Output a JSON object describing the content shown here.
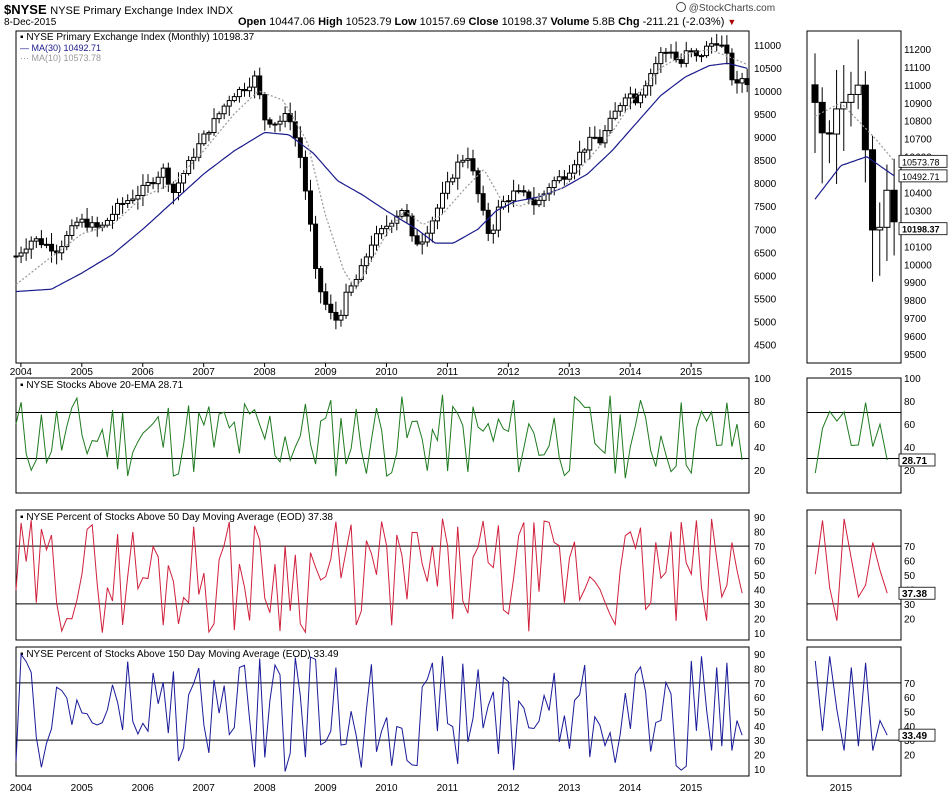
{
  "header": {
    "symbol": "$NYSE",
    "name": "NYSE Primary Exchange Index",
    "exchange": "INDX",
    "date": "8-Dec-2015",
    "watermark": "@StockCharts.com",
    "ohlc": [
      {
        "label": "Open",
        "value": "10447.06"
      },
      {
        "label": "High",
        "value": "10523.79"
      },
      {
        "label": "Low",
        "value": "10157.69"
      },
      {
        "label": "Close",
        "value": "10198.37"
      },
      {
        "label": "Volume",
        "value": "5.8B"
      },
      {
        "label": "Chg",
        "value": "-211.21 (-2.03%)"
      }
    ],
    "chg_arrow": "▼"
  },
  "colors": {
    "price": "#000000",
    "ma30": "#1a1a8c",
    "ma10": "#999999",
    "ema20": "#1f7a1f",
    "ma50": "#d0203c",
    "ma150": "#1a1a9a",
    "grid": "#000000"
  },
  "chart_data": [
    {
      "type": "candlestick",
      "title": "NYSE Primary Exchange Index (Monthly) 10198.37",
      "legend": [
        {
          "label": "MA(30) 10492.71",
          "series": "ma30"
        },
        {
          "label": "MA(10) 10573.78",
          "series": "ma10"
        }
      ],
      "x_years": [
        "2004",
        "2005",
        "2006",
        "2007",
        "2008",
        "2009",
        "2010",
        "2011",
        "2012",
        "2013",
        "2014",
        "2015"
      ],
      "y_ticks": [
        4500,
        5000,
        5500,
        6000,
        6500,
        7000,
        7500,
        8000,
        8500,
        9000,
        9500,
        10000,
        10500,
        11000
      ],
      "ylim": [
        4100,
        11300
      ],
      "close_anchors": [
        [
          2003.92,
          6420
        ],
        [
          2004.2,
          6800
        ],
        [
          2004.6,
          6550
        ],
        [
          2004.95,
          7200
        ],
        [
          2005.3,
          7000
        ],
        [
          2005.6,
          7500
        ],
        [
          2005.95,
          7800
        ],
        [
          2006.35,
          8300
        ],
        [
          2006.5,
          7800
        ],
        [
          2006.95,
          8900
        ],
        [
          2007.15,
          9300
        ],
        [
          2007.45,
          9900
        ],
        [
          2007.7,
          10100
        ],
        [
          2007.85,
          10300
        ],
        [
          2008.0,
          9400
        ],
        [
          2008.2,
          9300
        ],
        [
          2008.4,
          9500
        ],
        [
          2008.6,
          8500
        ],
        [
          2008.75,
          7100
        ],
        [
          2008.85,
          5900
        ],
        [
          2009.05,
          5200
        ],
        [
          2009.2,
          5000
        ],
        [
          2009.35,
          5600
        ],
        [
          2009.55,
          6000
        ],
        [
          2009.75,
          6700
        ],
        [
          2009.95,
          7000
        ],
        [
          2010.15,
          7300
        ],
        [
          2010.3,
          7500
        ],
        [
          2010.4,
          6800
        ],
        [
          2010.55,
          6700
        ],
        [
          2010.75,
          7200
        ],
        [
          2010.95,
          7800
        ],
        [
          2011.2,
          8500
        ],
        [
          2011.35,
          8600
        ],
        [
          2011.55,
          7500
        ],
        [
          2011.7,
          6800
        ],
        [
          2011.85,
          7500
        ],
        [
          2012.1,
          7800
        ],
        [
          2012.35,
          7700
        ],
        [
          2012.45,
          7500
        ],
        [
          2012.7,
          8000
        ],
        [
          2012.95,
          8200
        ],
        [
          2013.2,
          8700
        ],
        [
          2013.4,
          9000
        ],
        [
          2013.5,
          8900
        ],
        [
          2013.7,
          9400
        ],
        [
          2013.95,
          10000
        ],
        [
          2014.1,
          9800
        ],
        [
          2014.3,
          10300
        ],
        [
          2014.5,
          10800
        ],
        [
          2014.7,
          10900
        ],
        [
          2014.8,
          10500
        ],
        [
          2014.95,
          10900
        ],
        [
          2015.1,
          10700
        ],
        [
          2015.3,
          11000
        ],
        [
          2015.45,
          11100
        ],
        [
          2015.6,
          10700
        ],
        [
          2015.72,
          10000
        ],
        [
          2015.82,
          10300
        ],
        [
          2015.92,
          10198
        ]
      ],
      "ma30_anchors": [
        [
          2003.92,
          5650
        ],
        [
          2004.5,
          5700
        ],
        [
          2005.0,
          6050
        ],
        [
          2005.5,
          6450
        ],
        [
          2006.0,
          7000
        ],
        [
          2006.5,
          7600
        ],
        [
          2007.0,
          8200
        ],
        [
          2007.5,
          8700
        ],
        [
          2008.0,
          9100
        ],
        [
          2008.4,
          9050
        ],
        [
          2008.8,
          8650
        ],
        [
          2009.2,
          8050
        ],
        [
          2009.6,
          7750
        ],
        [
          2010.0,
          7400
        ],
        [
          2010.5,
          7000
        ],
        [
          2010.8,
          6700
        ],
        [
          2011.1,
          6700
        ],
        [
          2011.5,
          7000
        ],
        [
          2011.8,
          7400
        ],
        [
          2012.1,
          7600
        ],
        [
          2012.5,
          7700
        ],
        [
          2012.9,
          7900
        ],
        [
          2013.3,
          8200
        ],
        [
          2013.7,
          8700
        ],
        [
          2014.1,
          9300
        ],
        [
          2014.5,
          9900
        ],
        [
          2014.9,
          10300
        ],
        [
          2015.3,
          10550
        ],
        [
          2015.6,
          10600
        ],
        [
          2015.92,
          10492
        ]
      ],
      "ma10_anchors": [
        [
          2003.92,
          5800
        ],
        [
          2004.4,
          6300
        ],
        [
          2005.0,
          6900
        ],
        [
          2005.5,
          7100
        ],
        [
          2006.0,
          7700
        ],
        [
          2006.5,
          8000
        ],
        [
          2007.0,
          8700
        ],
        [
          2007.5,
          9500
        ],
        [
          2007.9,
          10000
        ],
        [
          2008.3,
          9800
        ],
        [
          2008.7,
          8900
        ],
        [
          2009.0,
          7300
        ],
        [
          2009.3,
          6100
        ],
        [
          2009.5,
          5700
        ],
        [
          2009.7,
          6200
        ],
        [
          2010.0,
          6900
        ],
        [
          2010.3,
          7400
        ],
        [
          2010.6,
          7100
        ],
        [
          2010.9,
          7300
        ],
        [
          2011.3,
          7900
        ],
        [
          2011.6,
          8300
        ],
        [
          2011.9,
          7600
        ],
        [
          2012.2,
          7500
        ],
        [
          2012.5,
          7700
        ],
        [
          2012.9,
          7900
        ],
        [
          2013.3,
          8500
        ],
        [
          2013.7,
          9100
        ],
        [
          2014.1,
          9900
        ],
        [
          2014.5,
          10500
        ],
        [
          2014.9,
          10800
        ],
        [
          2015.3,
          10900
        ],
        [
          2015.7,
          10700
        ],
        [
          2015.92,
          10573
        ]
      ],
      "value_labels": [
        {
          "text": "10573.78",
          "value": 10573.78
        },
        {
          "text": "10492.71",
          "value": 10492.71
        },
        {
          "text": "10198.37",
          "value": 10198.37
        }
      ],
      "zoom": {
        "x_label": "2015",
        "y_ticks": [
          9500,
          9600,
          9700,
          9800,
          9900,
          10000,
          10100,
          10200,
          10300,
          10400,
          10500,
          10600,
          10700,
          10800,
          10900,
          11000,
          11100,
          11200
        ],
        "ylim": [
          9450,
          11300
        ]
      }
    },
    {
      "type": "line",
      "title": "NYSE Stocks Above 20-EMA 28.71",
      "series": "ema20",
      "ylim": [
        0,
        100
      ],
      "y_ticks": [
        20,
        40,
        60,
        80,
        100
      ],
      "ref_lines": [
        30,
        70
      ],
      "seed": 11,
      "range": [
        12,
        86
      ],
      "last": 28.71,
      "last_label": "28.71",
      "zoom_y_ticks": [
        20,
        40,
        60,
        80,
        100
      ]
    },
    {
      "type": "line",
      "title": "NYSE Percent of Stocks Above 50 Day Moving Average (EOD) 37.38",
      "series": "ma50",
      "ylim": [
        5,
        95
      ],
      "y_ticks": [
        10,
        20,
        30,
        40,
        50,
        60,
        70,
        80,
        90
      ],
      "ref_lines": [
        30,
        70
      ],
      "seed": 29,
      "range": [
        10,
        90
      ],
      "last": 37.38,
      "last_label": "37.38",
      "zoom_y_ticks": [
        20,
        30,
        40,
        50,
        60,
        70
      ]
    },
    {
      "type": "line",
      "title": "NYSE Percent of Stocks Above 150 Day Moving Average (EOD) 33.49",
      "series": "ma150",
      "ylim": [
        5,
        95
      ],
      "y_ticks": [
        10,
        20,
        30,
        40,
        50,
        60,
        70,
        80,
        90
      ],
      "ref_lines": [
        30,
        70
      ],
      "seed": 47,
      "range": [
        8,
        90
      ],
      "last": 33.49,
      "last_label": "33.49",
      "zoom_y_ticks": [
        20,
        30,
        40,
        50,
        60,
        70
      ]
    }
  ]
}
